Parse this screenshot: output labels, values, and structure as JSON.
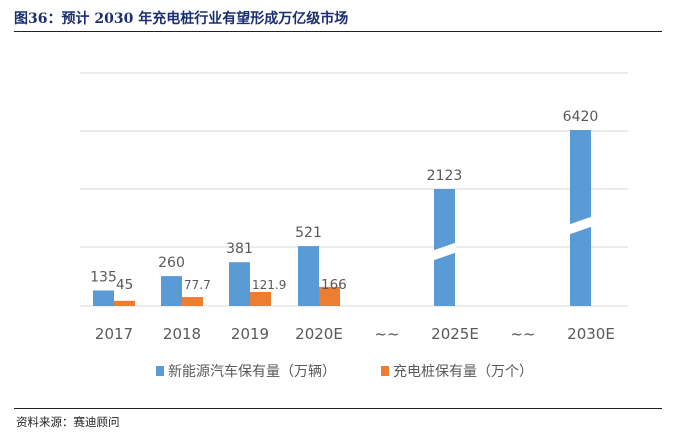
{
  "figure": {
    "title": "图36：预计 2030 年充电桩行业有望形成万亿级市场",
    "source": "资料来源：赛迪顾问"
  },
  "colors": {
    "series1": "#5b9bd5",
    "series2": "#ed7d31",
    "grid": "#d9d9d9",
    "text": "#595959"
  },
  "chart_data": {
    "type": "bar",
    "title": "",
    "xlabel": "",
    "ylabel": "",
    "categories": [
      "2017",
      "2018",
      "2019",
      "2020E",
      "~~",
      "2025E",
      "~~",
      "2030E"
    ],
    "series": [
      {
        "name": "新能源汽车保有量（万辆）",
        "values": [
          135,
          260,
          381,
          521,
          null,
          2123,
          null,
          6420
        ],
        "labels": [
          "135",
          "260",
          "381",
          "521",
          "",
          "2123",
          "",
          "6420"
        ]
      },
      {
        "name": "充电桩保有量（万个）",
        "values": [
          45,
          77.7,
          121.9,
          166,
          null,
          null,
          null,
          null
        ],
        "labels": [
          "45",
          "77.7",
          "121.9",
          "166",
          "",
          "",
          "",
          ""
        ]
      }
    ],
    "axis_breaks": [
      "2025E",
      "2030E"
    ],
    "gridlines": true,
    "legend": "bottom"
  }
}
